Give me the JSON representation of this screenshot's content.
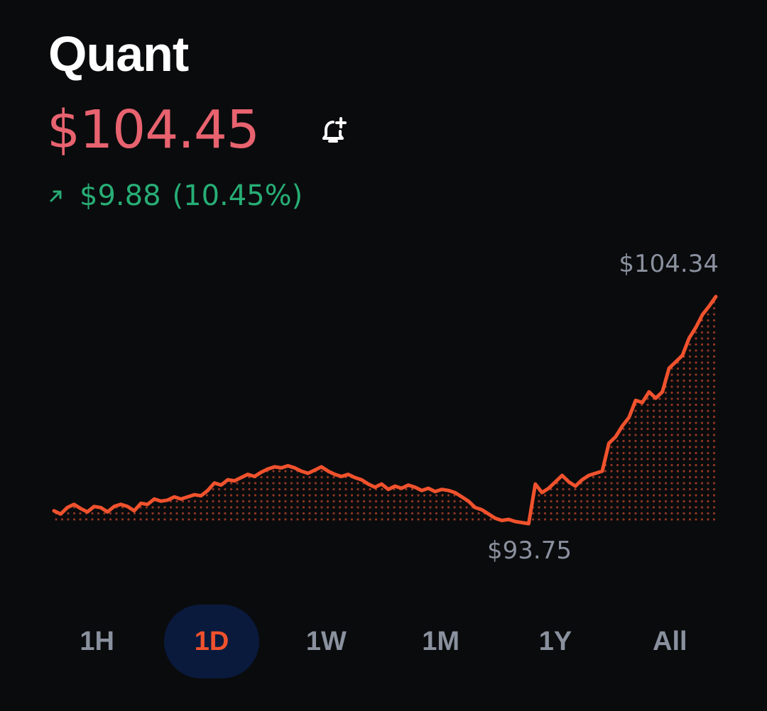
{
  "asset": {
    "name": "Quant",
    "price": "$104.45",
    "change_amount": "$9.88",
    "change_percent": "(10.45%)",
    "change_direction": "up"
  },
  "icons": {
    "alert": "bell-plus-icon",
    "change": "arrow-up-right-icon"
  },
  "colors": {
    "background": "#0a0b0d",
    "price": "#e8636f",
    "positive": "#27ad75",
    "chart_line": "#f0522d",
    "muted": "#8a919e",
    "active_tab_bg": "#0a1a3d"
  },
  "chart_data": {
    "type": "line",
    "period": "1D",
    "high_label": "$104.34",
    "low_label": "$93.75",
    "ylim": [
      93.75,
      104.34
    ],
    "values": [
      94.35,
      94.2,
      94.5,
      94.65,
      94.45,
      94.3,
      94.55,
      94.5,
      94.3,
      94.55,
      94.65,
      94.55,
      94.35,
      94.7,
      94.65,
      94.9,
      94.8,
      94.85,
      95.0,
      94.9,
      95.0,
      95.1,
      95.05,
      95.3,
      95.65,
      95.55,
      95.8,
      95.75,
      95.9,
      96.05,
      95.95,
      96.15,
      96.3,
      96.4,
      96.35,
      96.45,
      96.35,
      96.2,
      96.1,
      96.25,
      96.4,
      96.2,
      96.05,
      95.95,
      96.05,
      95.9,
      95.8,
      95.6,
      95.45,
      95.6,
      95.35,
      95.5,
      95.4,
      95.55,
      95.45,
      95.3,
      95.4,
      95.25,
      95.35,
      95.3,
      95.2,
      95.0,
      94.8,
      94.5,
      94.4,
      94.2,
      94.0,
      93.9,
      93.95,
      93.85,
      93.8,
      93.75,
      95.6,
      95.2,
      95.4,
      95.7,
      96.0,
      95.7,
      95.5,
      95.8,
      96.0,
      96.1,
      96.2,
      97.5,
      97.8,
      98.3,
      98.7,
      99.5,
      99.4,
      99.9,
      99.6,
      99.9,
      101.0,
      101.3,
      101.6,
      102.4,
      102.9,
      103.5,
      103.9,
      104.34
    ]
  },
  "timeframes": [
    {
      "label": "1H",
      "active": false
    },
    {
      "label": "1D",
      "active": true
    },
    {
      "label": "1W",
      "active": false
    },
    {
      "label": "1M",
      "active": false
    },
    {
      "label": "1Y",
      "active": false
    },
    {
      "label": "All",
      "active": false
    }
  ]
}
